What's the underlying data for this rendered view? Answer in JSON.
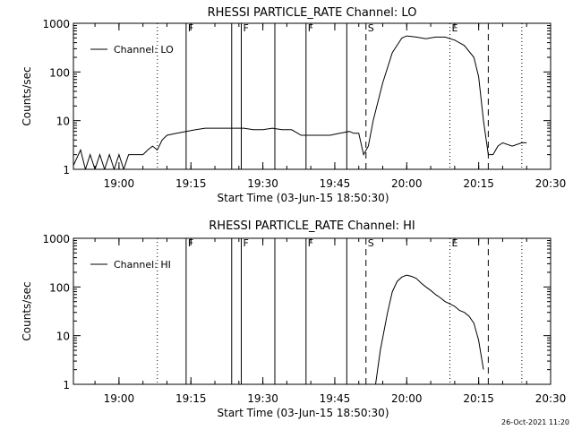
{
  "footer": {
    "timestamp": "26-Oct-2021 11:20"
  },
  "chart_data": [
    {
      "type": "line",
      "title": "RHESSI PARTICLE_RATE Channel: LO",
      "xlabel": "Start Time (03-Jun-15 18:50:30)",
      "ylabel": "Counts/sec",
      "yscale": "log",
      "xlim": [
        "18:50:30",
        "20:30:00"
      ],
      "ylim": [
        1,
        1000
      ],
      "x_tick_labels": [
        "19:00",
        "19:15",
        "19:30",
        "19:45",
        "20:00",
        "20:15",
        "20:30"
      ],
      "y_tick_labels": [
        "1",
        "10",
        "100",
        "1000"
      ],
      "legend": {
        "position": "top-left",
        "entries": [
          {
            "label": "Channel: LO"
          }
        ]
      },
      "series": [
        {
          "name": "Channel: LO",
          "x": [
            "18:50:30",
            "18:52:00",
            "18:53:00",
            "18:54:00",
            "18:55:00",
            "18:56:00",
            "18:57:00",
            "18:58:00",
            "18:59:00",
            "19:00:00",
            "19:01:00",
            "19:02:00",
            "19:03:00",
            "19:04:00",
            "19:05:00",
            "19:06:00",
            "19:07:00",
            "19:08:00",
            "19:09:00",
            "19:10:00",
            "19:12:00",
            "19:14:00",
            "19:16:00",
            "19:18:00",
            "19:20:00",
            "19:22:00",
            "19:24:00",
            "19:26:00",
            "19:28:00",
            "19:30:00",
            "19:32:00",
            "19:34:00",
            "19:36:00",
            "19:38:00",
            "19:40:00",
            "19:42:00",
            "19:44:00",
            "19:46:00",
            "19:48:00",
            "19:49:00",
            "19:50:00",
            "19:51:00",
            "19:52:00",
            "19:53:00",
            "19:55:00",
            "19:57:00",
            "19:59:00",
            "20:00:00",
            "20:02:00",
            "20:04:00",
            "20:06:00",
            "20:08:00",
            "20:10:00",
            "20:12:00",
            "20:14:00",
            "20:15:00",
            "20:16:00",
            "20:17:00",
            "20:18:00",
            "20:19:00",
            "20:20:00",
            "20:22:00",
            "20:24:00",
            "20:25:00"
          ],
          "values": [
            1.2,
            2.5,
            1.0,
            2.0,
            1.0,
            2.0,
            1.0,
            2.0,
            1.0,
            2.0,
            1.0,
            2.0,
            2.0,
            2.0,
            2.0,
            2.5,
            3.0,
            2.5,
            4.0,
            5.0,
            5.5,
            6.0,
            6.5,
            7.0,
            7.0,
            7.0,
            7.0,
            7.0,
            6.5,
            6.5,
            7.0,
            6.5,
            6.5,
            5.0,
            5.0,
            5.0,
            5.0,
            5.5,
            6.0,
            5.5,
            5.5,
            2.0,
            3.0,
            10.0,
            60.0,
            250.0,
            500.0,
            550.0,
            520.0,
            480.0,
            520.0,
            520.0,
            450.0,
            350.0,
            200.0,
            80.0,
            10.0,
            2.0,
            2.0,
            3.0,
            3.5,
            3.0,
            3.5,
            3.5
          ]
        }
      ],
      "annotations": [
        {
          "x": "19:08:00",
          "style": "dotted"
        },
        {
          "x": "19:14:00",
          "style": "solid",
          "label": "F"
        },
        {
          "x": "19:23:30",
          "style": "solid"
        },
        {
          "x": "19:25:30",
          "style": "solid",
          "label": "F"
        },
        {
          "x": "19:32:30",
          "style": "solid"
        },
        {
          "x": "19:39:00",
          "style": "solid",
          "label": "F"
        },
        {
          "x": "19:47:30",
          "style": "solid"
        },
        {
          "x": "19:51:30",
          "style": "dashed",
          "label": "S"
        },
        {
          "x": "20:09:00",
          "style": "dotted",
          "label": "E"
        },
        {
          "x": "20:17:00",
          "style": "dashed"
        },
        {
          "x": "20:24:00",
          "style": "dotted"
        }
      ]
    },
    {
      "type": "line",
      "title": "RHESSI PARTICLE_RATE Channel: HI",
      "xlabel": "Start Time (03-Jun-15 18:50:30)",
      "ylabel": "Counts/sec",
      "yscale": "log",
      "xlim": [
        "18:50:30",
        "20:30:00"
      ],
      "ylim": [
        1,
        1000
      ],
      "x_tick_labels": [
        "19:00",
        "19:15",
        "19:30",
        "19:45",
        "20:00",
        "20:15",
        "20:30"
      ],
      "y_tick_labels": [
        "1",
        "10",
        "100",
        "1000"
      ],
      "legend": {
        "position": "top-left",
        "entries": [
          {
            "label": "Channel: HI"
          }
        ]
      },
      "series": [
        {
          "name": "Channel: HI",
          "x": [
            "19:53:30",
            "19:54:30",
            "19:56:00",
            "19:57:00",
            "19:58:00",
            "19:59:00",
            "20:00:00",
            "20:01:00",
            "20:02:00",
            "20:03:00",
            "20:04:00",
            "20:05:00",
            "20:06:00",
            "20:07:00",
            "20:08:00",
            "20:09:00",
            "20:10:00",
            "20:11:00",
            "20:12:00",
            "20:13:00",
            "20:14:00",
            "20:15:00",
            "20:16:00"
          ],
          "values": [
            1.0,
            5.0,
            30.0,
            80.0,
            130.0,
            160.0,
            175.0,
            165.0,
            150.0,
            120.0,
            100.0,
            85.0,
            70.0,
            60.0,
            50.0,
            45.0,
            40.0,
            33.0,
            30.0,
            25.0,
            18.0,
            8.0,
            2.0
          ]
        }
      ],
      "annotations": [
        {
          "x": "19:08:00",
          "style": "dotted"
        },
        {
          "x": "19:14:00",
          "style": "solid",
          "label": "F"
        },
        {
          "x": "19:23:30",
          "style": "solid"
        },
        {
          "x": "19:25:30",
          "style": "solid",
          "label": "F"
        },
        {
          "x": "19:32:30",
          "style": "solid"
        },
        {
          "x": "19:39:00",
          "style": "solid",
          "label": "F"
        },
        {
          "x": "19:47:30",
          "style": "solid"
        },
        {
          "x": "19:51:30",
          "style": "dashed",
          "label": "S"
        },
        {
          "x": "20:09:00",
          "style": "dotted",
          "label": "E"
        },
        {
          "x": "20:17:00",
          "style": "dashed"
        },
        {
          "x": "20:24:00",
          "style": "dotted"
        }
      ]
    }
  ]
}
